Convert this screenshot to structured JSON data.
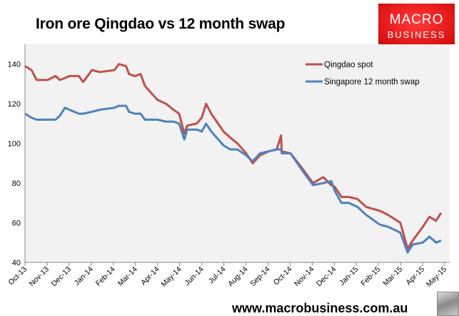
{
  "chart_data": {
    "type": "line",
    "title": "Iron ore Qingdao vs 12 month swap",
    "xlabel": "",
    "ylabel": "",
    "ylim": [
      40,
      150
    ],
    "yticks": [
      40,
      60,
      80,
      100,
      120,
      140
    ],
    "xlim": [
      "2013-10-01",
      "2015-05-01"
    ],
    "xticks": [
      "Oct-13",
      "Nov-13",
      "Dec-13",
      "Jan-14",
      "Feb-14",
      "Mar-14",
      "Apr-14",
      "May-14",
      "Jun-14",
      "Jul-14",
      "Aug-14",
      "Sep-14",
      "Oct-14",
      "Nov-14",
      "Dec-14",
      "Jan-15",
      "Feb-15",
      "Mar-15",
      "Apr-15",
      "May-15"
    ],
    "grid": false,
    "legend_position": "top-right",
    "x": [
      "2013-10-01",
      "2013-10-10",
      "2013-10-17",
      "2013-11-01",
      "2013-11-12",
      "2013-11-18",
      "2013-11-25",
      "2013-12-01",
      "2013-12-14",
      "2013-12-20",
      "2014-01-01",
      "2014-01-12",
      "2014-02-01",
      "2014-02-07",
      "2014-02-17",
      "2014-02-21",
      "2014-03-01",
      "2014-03-09",
      "2014-03-15",
      "2014-04-01",
      "2014-04-13",
      "2014-04-23",
      "2014-05-01",
      "2014-05-08",
      "2014-05-12",
      "2014-05-25",
      "2014-06-01",
      "2014-06-07",
      "2014-06-14",
      "2014-07-01",
      "2014-07-10",
      "2014-07-20",
      "2014-08-01",
      "2014-08-10",
      "2014-08-20",
      "2014-09-01",
      "2014-09-12",
      "2014-09-18",
      "2014-09-19",
      "2014-10-01",
      "2014-10-16",
      "2014-11-01",
      "2014-11-15",
      "2014-11-26",
      "2014-12-01",
      "2014-12-10",
      "2014-12-20",
      "2015-01-01",
      "2015-01-13",
      "2015-02-01",
      "2015-02-12",
      "2015-03-01",
      "2015-03-11",
      "2015-03-18",
      "2015-04-01",
      "2015-04-10",
      "2015-04-19",
      "2015-04-26"
    ],
    "series": [
      {
        "name": "Qingdao spot",
        "color": "#c0504d",
        "values": [
          139,
          137,
          132,
          132,
          134,
          132,
          133,
          134,
          134,
          131,
          137,
          136,
          137,
          140,
          139,
          135,
          134,
          135,
          129,
          122,
          120,
          117,
          115,
          105,
          109,
          110,
          113,
          120,
          115,
          106,
          103,
          100,
          95,
          90,
          94,
          96,
          97,
          104,
          96,
          95,
          88,
          80,
          83,
          79,
          78,
          73,
          73,
          72,
          68,
          66,
          64,
          60,
          47,
          51,
          58,
          63,
          61,
          65
        ]
      },
      {
        "name": "Singapore 12 month swap",
        "color": "#4f81bd",
        "values": [
          115,
          113,
          112,
          112,
          112,
          114,
          118,
          117,
          115,
          115,
          116,
          117,
          118,
          119,
          119,
          116,
          115,
          115,
          112,
          112,
          111,
          111,
          110,
          102,
          107,
          107,
          106,
          110,
          106,
          99,
          97,
          97,
          94,
          91,
          95,
          96,
          97,
          97,
          95,
          95,
          87,
          79,
          80,
          81,
          76,
          70,
          70,
          68,
          64,
          59,
          58,
          55,
          45,
          49,
          50,
          53,
          50,
          51
        ]
      }
    ]
  },
  "logo": {
    "line1": "MACRO",
    "line2": "BUSINESS"
  },
  "footer": {
    "url": "www.macrobusiness.com.au"
  }
}
